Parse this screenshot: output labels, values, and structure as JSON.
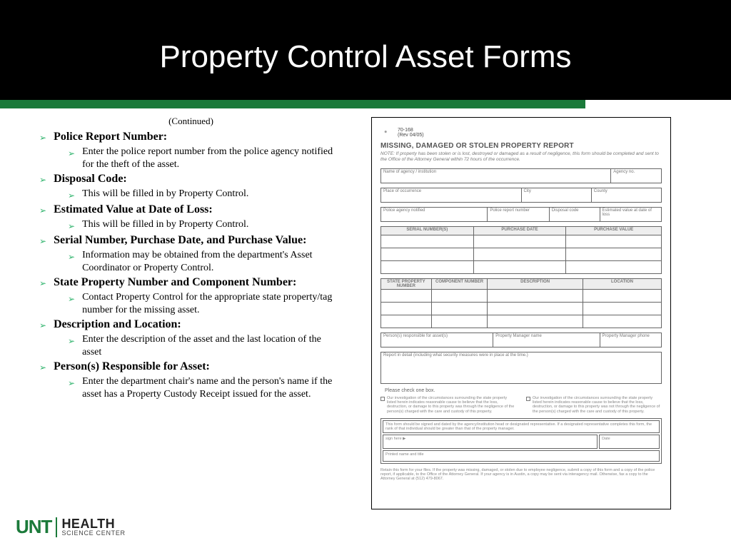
{
  "header": {
    "title": "Property Control Asset Forms"
  },
  "continued": "(Continued)",
  "items": [
    {
      "head": "Police Report Number",
      "sub": "Enter the police report number from the police agency notified for the theft of the asset."
    },
    {
      "head": "Disposal Code",
      "sub": "This will be filled in by Property Control."
    },
    {
      "head": "Estimated Value at Date of Loss",
      "sub": "This will be filled in by Property Control."
    },
    {
      "head": "Serial Number, Purchase Date, and Purchase Value",
      "sub": "Information may be obtained from the department's Asset Coordinator or Property Control."
    },
    {
      "head": "State Property Number and Component Number",
      "sub": "Contact Property Control for the appropriate state property/tag number for the missing asset."
    },
    {
      "head": "Description and Location",
      "sub": "Enter the description of the asset and the last location of the asset"
    },
    {
      "head": "Person(s) Responsible for Asset",
      "sub": "Enter the department chair's name and the person's name if the asset has a Property Custody Receipt issued for the asset."
    }
  ],
  "form": {
    "top_id": "70-168",
    "top_rev": "(Rev 04/05)",
    "title": "MISSING, DAMAGED OR STOLEN PROPERTY REPORT",
    "note": "NOTE:  If property has been stolen or is lost, destroyed or damaged as a result of negligence, this form should be completed and sent to the Office of the Attorney General within 72 hours of the occurrence.",
    "row1": {
      "agency": "Name of agency / institution",
      "agency_no": "Agency no."
    },
    "row2": {
      "place": "Place of occurrence",
      "city": "City",
      "county": "County"
    },
    "row3": {
      "police": "Police agency notified",
      "report_no": "Police report number",
      "disposal": "Disposal code",
      "est_val": "Estimated value at date of loss"
    },
    "table1_headers": [
      "SERIAL NUMBER(S)",
      "PURCHASE DATE",
      "PURCHASE VALUE"
    ],
    "table2_headers": [
      "STATE PROPERTY NUMBER",
      "COMPONENT NUMBER",
      "DESCRIPTION",
      "LOCATION"
    ],
    "row4": {
      "persons": "Person(s) responsible for asset(s)",
      "pm_name": "Property Manager name",
      "pm_phone": "Property Manager phone"
    },
    "row5": "Report in detail (including what security measures were in place at the time.)",
    "check_label": "Please check one box.",
    "check1": "Our investigation of the circumstances surrounding the state property listed herein indicates reasonable cause to believe that the loss, destruction, or damage to this property was through the negligence of the person(s) charged with the care and custody of this property.",
    "check2": "Our investigation of the circumstances surrounding the state property listed herein indicates reasonable cause to believe that the loss, destruction, or damage to this property was not through the negligence of the person(s) charged with the care and custody of this property.",
    "sign_note": "This form should be signed and dated by the agency/institution head or designated representative. If a designated representative completes this form, the rank of that individual should be greater than that of the property manager.",
    "sign_here": "sign here ▶",
    "sign_date": "Date",
    "printed": "Printed name and title",
    "retain": "Retain this form for your files. If the property was missing, damaged, or stolen due to employee negligence, submit a copy of this form and a copy of the police report, if applicable, to the Office of the Attorney General. If your agency is in Austin, a copy may be sent via interagency mail. Otherwise, fax a copy to the Attorney General at (512) 479-8067."
  },
  "footer": {
    "unt": "UNT",
    "health": "HEALTH",
    "sci": "SCIENCE CENTER"
  },
  "colors": {
    "green": "#1b7a3a",
    "tri": "#2fb36c"
  }
}
